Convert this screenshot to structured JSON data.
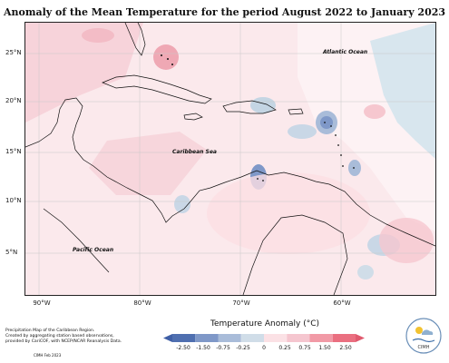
{
  "title": "Anomaly of the Mean Temperature for the period August 2022 to January 2023",
  "labels": {
    "atlantic": "Atlantic Ocean",
    "caribbean": "Caribbean Sea",
    "pacific": "Pacific Ocean"
  },
  "lat_ticks": [
    "25°N",
    "20°N",
    "15°N",
    "10°N",
    "5°N"
  ],
  "lon_ticks": [
    "90°W",
    "80°W",
    "70°W",
    "60°W"
  ],
  "legend": {
    "title": "Temperature Anomaly (°C)",
    "ticks": [
      "-2.50",
      "-1.50",
      "-0.75",
      "-0.25",
      "0",
      "0.25",
      "0.75",
      "1.50",
      "2.50"
    ],
    "colors": [
      "#4f6fb0",
      "#7f98c8",
      "#a9bcd9",
      "#d0dde8",
      "#ffffff",
      "#fbe1e5",
      "#f5c6cf",
      "#f19aa6",
      "#ea6f80"
    ]
  },
  "footer": {
    "line1": "Precipitation Map of the Caribbean Region.",
    "line2": "Created by aggregating station based observations,",
    "line3": "provided by CariCOF, with NCEP/NCAR Reanalysis Data.",
    "credit": "CIMH Feb 2023"
  },
  "logo_text": "CIMH"
}
